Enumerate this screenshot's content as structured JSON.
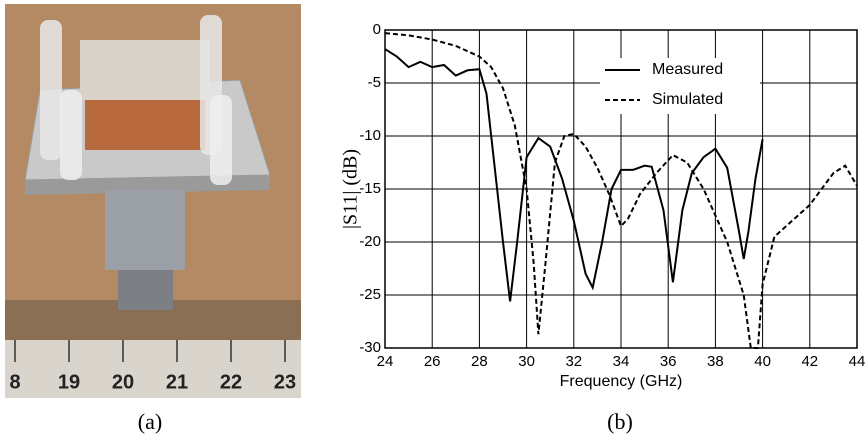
{
  "captions": [
    "(a)",
    "(b)"
  ],
  "photo": {
    "ruler_labels": [
      "8",
      "19",
      "20",
      "21",
      "22",
      "23"
    ]
  },
  "chart_data": {
    "type": "line",
    "x_label": "Frequency (GHz)",
    "y_label": "|S11| (dB)",
    "xlim": [
      24,
      44
    ],
    "xticks": [
      24,
      26,
      28,
      30,
      32,
      34,
      36,
      38,
      40,
      42,
      44
    ],
    "ylim": [
      -30,
      0
    ],
    "yticks": [
      0,
      -5,
      -10,
      -15,
      -20,
      -25,
      -30
    ],
    "grid": true,
    "legend": "upper right",
    "series": [
      {
        "name": "Measured",
        "color": "#000000",
        "dash": false,
        "x": [
          24,
          24.5,
          25,
          25.5,
          26,
          26.5,
          27,
          27.5,
          28,
          28.3,
          28.6,
          29,
          29.3,
          29.6,
          30,
          30.5,
          31,
          31.5,
          32,
          32.5,
          32.8,
          33.2,
          33.6,
          34,
          34.5,
          35,
          35.3,
          35.8,
          36.2,
          36.6,
          37,
          37.5,
          38,
          38.5,
          39,
          39.2,
          39.4,
          39.7,
          40
        ],
        "values": [
          -1.8,
          -2.5,
          -3.5,
          -3,
          -3.5,
          -3.3,
          -4.3,
          -3.8,
          -3.7,
          -6,
          -12,
          -20,
          -25.6,
          -20,
          -12,
          -10.2,
          -11,
          -14,
          -18,
          -23,
          -24.3,
          -20,
          -15,
          -13.2,
          -13.2,
          -12.8,
          -12.9,
          -17,
          -23.8,
          -17,
          -13.5,
          -12,
          -11.2,
          -13,
          -19,
          -21.6,
          -19,
          -14,
          -10.3
        ]
      },
      {
        "name": "Simulated",
        "color": "#000000",
        "dash": true,
        "x": [
          24,
          25,
          26,
          27,
          28,
          28.5,
          29,
          29.5,
          30,
          30.3,
          30.5,
          30.8,
          31.2,
          31.6,
          32,
          32.5,
          33,
          33.5,
          34,
          34.3,
          34.8,
          35.5,
          36.2,
          36.8,
          37.5,
          38.5,
          39.2,
          39.5,
          39.8,
          40,
          40.5,
          41.5,
          42,
          43,
          43.5,
          44
        ],
        "values": [
          -0.3,
          -0.5,
          -0.9,
          -1.5,
          -2.5,
          -3.5,
          -5.5,
          -9,
          -15,
          -22,
          -28.7,
          -22,
          -12.5,
          -10,
          -9.8,
          -11,
          -13,
          -15.5,
          -18.5,
          -17.8,
          -15.5,
          -13.5,
          -11.8,
          -12.5,
          -15,
          -20,
          -25,
          -30,
          -30,
          -24,
          -19.5,
          -17.5,
          -16.5,
          -13.5,
          -12.8,
          -14.7
        ]
      }
    ]
  }
}
